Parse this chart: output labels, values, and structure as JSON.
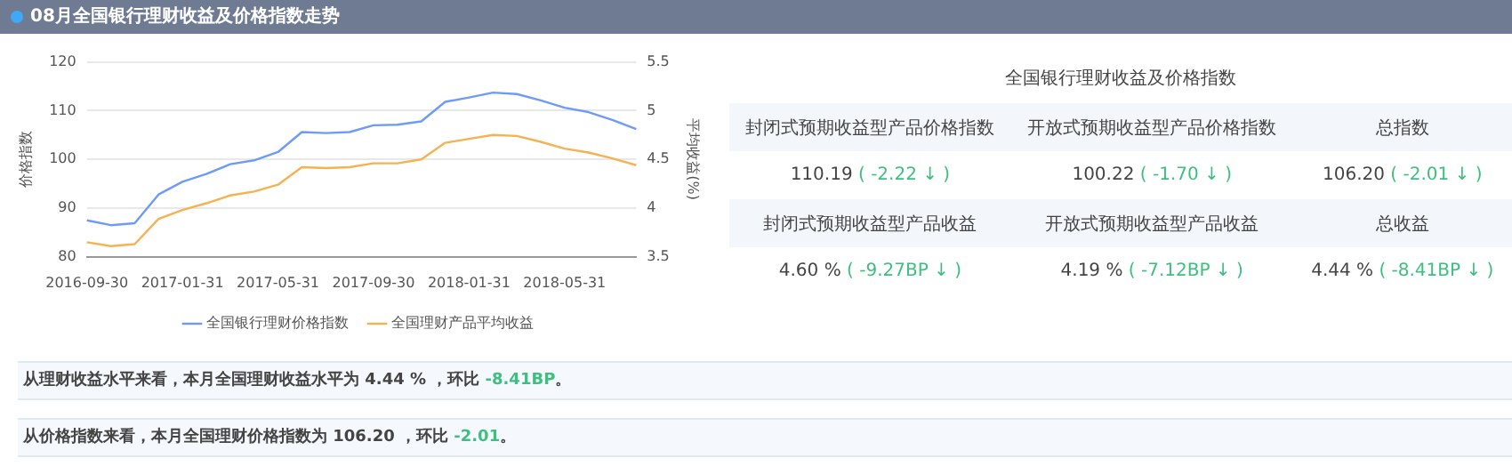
{
  "chart_data": {
    "type": "line",
    "title": "08月全国银行理财收益及价格指数走势",
    "ylabel": "价格指数",
    "y2label": "平均收益(%)",
    "categories": [
      "2016-09-30",
      null,
      null,
      null,
      "2017-01-31",
      null,
      null,
      null,
      "2017-05-31",
      null,
      null,
      null,
      "2017-09-30",
      null,
      null,
      null,
      "2018-01-31",
      null,
      null,
      null,
      "2018-05-31",
      null,
      null,
      null
    ],
    "series": [
      {
        "name": "全国银行理财价格指数",
        "color": "#6e9bf7",
        "values": [
          87.5,
          86.5,
          86.9,
          92.8,
          95.4,
          97.0,
          99.0,
          99.8,
          101.5,
          105.6,
          105.4,
          105.6,
          107.0,
          107.1,
          107.8,
          111.8,
          112.7,
          113.7,
          113.4,
          112.1,
          110.6,
          109.7,
          108.1,
          106.2
        ]
      },
      {
        "name": "全国理财产品平均收益",
        "color": "#f5b253",
        "axis": "y2",
        "values": [
          3.65,
          3.61,
          3.63,
          3.89,
          3.98,
          4.05,
          4.13,
          4.17,
          4.24,
          4.42,
          4.41,
          4.42,
          4.46,
          4.46,
          4.5,
          4.67,
          4.71,
          4.75,
          4.74,
          4.68,
          4.61,
          4.57,
          4.51,
          4.44
        ]
      }
    ],
    "ylim": [
      80,
      120
    ],
    "yticks": [
      80,
      90,
      100,
      110,
      120
    ],
    "y2lim": [
      3.5,
      5.5
    ],
    "y2ticks": [
      3.5,
      4,
      4.5,
      5,
      5.5
    ],
    "grid": "y",
    "legend": "bottom",
    "marker": "none",
    "line_style": "solid",
    "annotations": [
      "全国银行理财收益及价格指数",
      "封闭式预期收益型产品价格指数",
      "开放式预期收益型产品价格指数",
      "总指数",
      "110.19 ( -2.22 ↓ )",
      "100.22 ( -1.70 ↓ )",
      "106.20 ( -2.01 ↓ )",
      "封闭式预期收益型产品收益",
      "开放式预期收益型产品收益",
      "总收益",
      "4.60 % ( -9.27BP ↓ )",
      "4.19 % ( -7.12BP ↓ )",
      "4.44 % ( -8.41BP ↓ )",
      "从理财收益水平来看，本月全国理财收益水平为 4.44 % ，环比 -8.41BP。",
      "从价格指数来看，本月全国理财价格指数为 106.20 ，环比 -2.01。"
    ]
  }
}
